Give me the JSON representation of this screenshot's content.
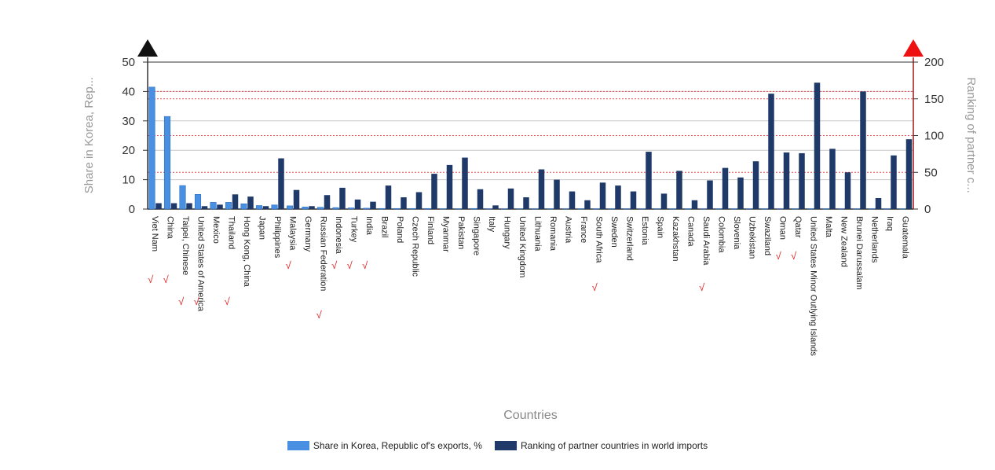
{
  "chart_data": {
    "type": "bar",
    "title": "",
    "xlabel": "Countries",
    "ylabel_left": "Share in Korea, Rep...",
    "ylabel_right": "Ranking of partner c...",
    "ylim_left": [
      0,
      50
    ],
    "ylim_right": [
      0,
      200
    ],
    "yticks_left": [
      "0",
      "10",
      "20",
      "30",
      "40",
      "50"
    ],
    "yticks_right": [
      "0",
      "50",
      "100",
      "150",
      "200"
    ],
    "colors": {
      "share": "#4a90e2",
      "ranking": "#1f3a68",
      "reference_lines": "#e05050",
      "gridlines": "#c8c8c8",
      "axis_right_marker": "#ee1111",
      "axis_left_marker": "#111111",
      "check_mark": "#dd2222"
    },
    "categories": [
      "Viet Nam",
      "China",
      "Taipei, Chinese",
      "United States of America",
      "Mexico",
      "Thailand",
      "Hong Kong, China",
      "Japan",
      "Philippines",
      "Malaysia",
      "Germany",
      "Russian Federation",
      "Indonesia",
      "Turkey",
      "India",
      "Brazil",
      "Poland",
      "Czech Republic",
      "Finland",
      "Myanmar",
      "Pakistan",
      "Singapore",
      "Italy",
      "Hungary",
      "United Kingdom",
      "Lithuania",
      "Romania",
      "Austria",
      "France",
      "South Africa",
      "Sweden",
      "Switzerland",
      "Estonia",
      "Spain",
      "Kazakhstan",
      "Canada",
      "Saudi Arabia",
      "Colombia",
      "Slovenia",
      "Uzbekistan",
      "Swaziland",
      "Oman",
      "Qatar",
      "United States Minor Outlying Islands",
      "Malta",
      "New Zealand",
      "Brunei Darussalam",
      "Netherlands",
      "Iraq",
      "Guatemala"
    ],
    "series": [
      {
        "name": "Share in Korea, Republic of's exports, %",
        "axis": "left",
        "values": [
          41.5,
          31.5,
          8,
          5,
          2.3,
          2.3,
          1.8,
          1.2,
          1.4,
          1.1,
          0.7,
          0.6,
          0.5,
          0.4,
          0.3,
          0.2,
          0.2,
          0.2,
          0.2,
          0.1,
          0.1,
          0.2,
          0.1,
          0.1,
          0.1,
          0.1,
          0.1,
          0.1,
          0.1,
          0.1,
          0.1,
          0.1,
          0.1,
          0.1,
          0.1,
          0.1,
          0.1,
          0.1,
          0.1,
          0.1,
          0.1,
          0.1,
          0.1,
          0.1,
          0.1,
          0.1,
          0.1,
          0.1,
          0.1,
          0.1
        ]
      },
      {
        "name": "Ranking of partner countries in world imports",
        "axis": "right",
        "values": [
          8,
          8,
          8,
          4,
          6,
          20,
          17,
          4,
          69,
          26,
          4,
          19,
          29,
          13,
          10,
          32,
          16,
          23,
          48,
          60,
          70,
          27,
          5,
          28,
          16,
          54,
          40,
          24,
          12,
          36,
          32,
          24,
          78,
          21,
          52,
          12,
          39,
          56,
          43,
          65,
          157,
          77,
          76,
          172,
          82,
          50,
          160,
          15,
          73,
          95
        ]
      }
    ],
    "check_marks": [
      0,
      1,
      2,
      3,
      5,
      9,
      11,
      12,
      13,
      14,
      29,
      36,
      41,
      42
    ]
  }
}
